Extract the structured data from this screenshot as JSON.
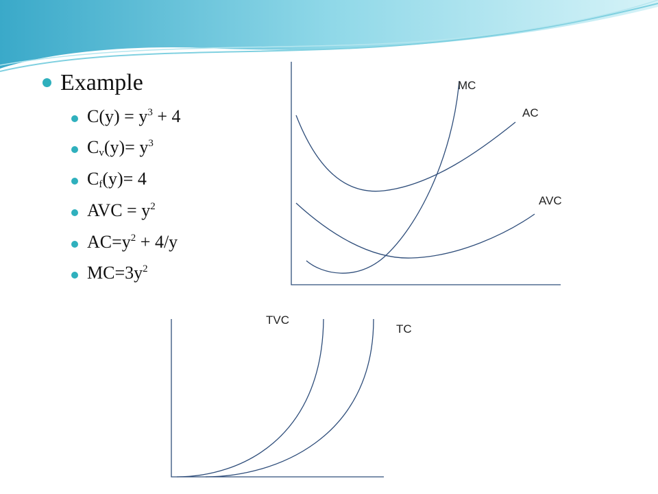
{
  "title": "Example",
  "items": [
    [
      "C(y) = y",
      "3",
      " + 4"
    ],
    [
      "C",
      "v",
      "(y)= y",
      "3"
    ],
    [
      "C",
      "f",
      "(y)= 4"
    ],
    [
      "AVC = y",
      "2"
    ],
    [
      "AC=y",
      "2",
      " + 4/y"
    ],
    [
      "MC=3y",
      "2"
    ]
  ],
  "cost_curves": {
    "mc": "MC",
    "ac": "AC",
    "avc": "AVC"
  },
  "total_curves": {
    "tvc": "TVC",
    "tc": "TC"
  }
}
